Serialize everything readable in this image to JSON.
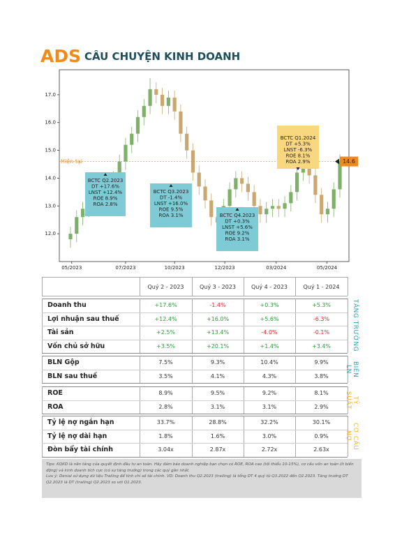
{
  "header": {
    "brand": "ADS",
    "title": "CÂU CHUYỆN KINH DOANH"
  },
  "chart_data": {
    "type": "candlestick",
    "xticks": [
      "05/2023",
      "07/2023",
      "10/2023",
      "12/2023",
      "03/2024",
      "05/2024"
    ],
    "open": [
      11.8,
      12.0,
      12.6,
      12.9,
      13.2,
      13.0,
      13.5,
      13.9,
      14.0,
      14.6,
      15.2,
      15.6,
      16.2,
      16.6,
      17.2,
      17.0,
      16.6,
      16.9,
      16.4,
      15.6,
      15.0,
      14.2,
      13.7,
      13.2,
      12.6,
      12.4,
      13.0,
      13.6,
      14.0,
      13.8,
      13.5,
      13.0,
      12.7,
      12.9,
      13.0,
      12.9,
      13.1,
      13.5,
      14.2,
      14.6,
      14.1,
      13.4,
      12.7,
      12.9,
      13.6
    ],
    "high": [
      12.25,
      12.85,
      13.15,
      13.45,
      13.45,
      13.75,
      14.15,
      14.25,
      14.85,
      15.45,
      15.85,
      16.45,
      16.85,
      17.6,
      17.45,
      17.25,
      17.15,
      17.15,
      16.65,
      15.85,
      15.25,
      14.45,
      13.95,
      13.45,
      12.85,
      13.25,
      13.85,
      14.25,
      14.25,
      14.05,
      13.75,
      13.25,
      13.15,
      13.25,
      13.25,
      13.35,
      13.75,
      14.45,
      14.85,
      14.85,
      14.35,
      13.65,
      13.15,
      13.85,
      14.85
    ],
    "low": [
      11.5,
      11.7,
      12.3,
      12.6,
      12.7,
      12.7,
      13.2,
      13.6,
      13.7,
      14.3,
      14.9,
      15.3,
      15.9,
      16.3,
      16.7,
      16.3,
      16.3,
      16.1,
      15.3,
      14.7,
      13.9,
      13.4,
      12.9,
      12.3,
      12.1,
      12.1,
      12.7,
      13.3,
      13.5,
      13.2,
      12.7,
      12.4,
      12.4,
      12.6,
      12.6,
      12.6,
      12.8,
      13.2,
      13.9,
      13.8,
      13.1,
      12.4,
      12.4,
      12.6,
      13.3
    ],
    "close": [
      12.0,
      12.6,
      12.9,
      13.2,
      13.0,
      13.5,
      13.9,
      14.0,
      14.6,
      15.2,
      15.6,
      16.2,
      16.6,
      17.2,
      17.0,
      16.6,
      16.9,
      16.4,
      15.6,
      15.0,
      14.2,
      13.7,
      13.2,
      12.6,
      12.4,
      13.0,
      13.6,
      14.0,
      13.8,
      13.5,
      13.0,
      12.7,
      12.9,
      13.0,
      12.9,
      13.1,
      13.5,
      14.2,
      14.6,
      14.1,
      13.4,
      12.7,
      12.9,
      13.6,
      14.6
    ],
    "up_color": "#7fb069",
    "down_color": "#c8a870",
    "ylim": [
      11.0,
      17.9
    ],
    "yticks": [
      {
        "value": 12,
        "label": "12.0"
      },
      {
        "value": 13,
        "label": "13.0"
      },
      {
        "value": 14,
        "label": "14.0"
      },
      {
        "value": 15,
        "label": "15.0"
      },
      {
        "value": 16,
        "label": "16.0"
      },
      {
        "value": 17,
        "label": "17.0"
      }
    ],
    "current": {
      "label": "Hiện tại",
      "value": 14.6,
      "color": "#f08a1c"
    },
    "annotations": [
      {
        "lines": [
          "BCTC Q2.2023",
          "DT +17.6%",
          "LNST +12.4%",
          "ROE 8.9%",
          "ROA 2.8%"
        ],
        "color": "#7ecbd6"
      },
      {
        "lines": [
          "BCTC Q3.2023",
          "DT -1.4%",
          "LNST +16.0%",
          "ROE 9.5%",
          "ROA 3.1%"
        ],
        "color": "#7ecbd6"
      },
      {
        "lines": [
          "BCTC Q4.2023",
          "DT +0.3%",
          "LNST +5.6%",
          "ROE 9.2%",
          "ROA 3.1%"
        ],
        "color": "#7ecbd6"
      },
      {
        "lines": [
          "BCTC Q1.2024",
          "DT +5.3%",
          "LNST -6.3%",
          "ROE 8.1%",
          "ROA 2.9%"
        ],
        "color": "#f9d77e"
      }
    ]
  },
  "table": {
    "header": [
      "Quý 2 - 2023",
      "Quý 3 - 2023",
      "Quý 4 - 2023",
      "Quý 1 - 2024"
    ],
    "groups": [
      {
        "side": "TĂNG TRƯỞNG",
        "side_color": "#2aa4b5",
        "rows": [
          {
            "label": "Doanh thu",
            "cells": [
              "+17.6%",
              "-1.4%",
              "+0.3%",
              "+5.3%"
            ]
          },
          {
            "label": "Lợi nhuận sau thuế",
            "cells": [
              "+12.4%",
              "+16.0%",
              "+5.6%",
              "-6.3%"
            ]
          },
          {
            "label": "Tài sản",
            "cells": [
              "+2.5%",
              "+13.4%",
              "-4.0%",
              "-0.1%"
            ]
          },
          {
            "label": "Vốn chủ sở hữu",
            "cells": [
              "+3.5%",
              "+20.1%",
              "+1.4%",
              "+3.4%"
            ]
          }
        ]
      },
      {
        "side": "BIÊN LN",
        "side_color": "#2aa4b5",
        "rows": [
          {
            "label": "BLN Gộp",
            "cells": [
              "7.5%",
              "9.3%",
              "10.4%",
              "9.9%"
            ]
          },
          {
            "label": "BLN sau thuế",
            "cells": [
              "3.5%",
              "4.1%",
              "4.3%",
              "3.8%"
            ]
          }
        ]
      },
      {
        "side": "TỶ SUẤT",
        "side_color": "#f2b632",
        "rows": [
          {
            "label": "ROE",
            "cells": [
              "8.9%",
              "9.5%",
              "9.2%",
              "8.1%"
            ]
          },
          {
            "label": "ROA",
            "cells": [
              "2.8%",
              "3.1%",
              "3.1%",
              "2.9%"
            ]
          }
        ]
      },
      {
        "side": "CƠ CẤU NỢ",
        "side_color": "#f2b632",
        "rows": [
          {
            "label": "Tỷ lệ nợ ngắn hạn",
            "cells": [
              "33.7%",
              "28.8%",
              "32.2%",
              "30.1%"
            ]
          },
          {
            "label": "Tỷ lệ nợ dài hạn",
            "cells": [
              "1.8%",
              "1.6%",
              "3.0%",
              "0.9%"
            ]
          },
          {
            "label": "Đòn bẩy tài chính",
            "cells": [
              "3.04x",
              "2.87x",
              "2.72x",
              "2.63x"
            ]
          }
        ]
      }
    ]
  },
  "footer": {
    "tips": "Tips: KQKD là nền tảng của quyết định đầu tư an toàn. Hãy đảm bảo doanh nghiệp bạn chọn có ROE, ROA cao (tối thiểu 10-15%), cơ cấu vốn an toàn (ít biến động) và kinh doanh tích cực (có sự tăng trưởng) trong các quý gần nhất.",
    "note": "Lưu ý: Denial sử dụng dữ liệu Trailing để tính chỉ số tài chính. VD: Doanh thu Q2.2023 (trailing) là tổng DT 4 quý từ Q3.2022 đến Q2.2023. Tăng trưởng DT Q2.2023 là DT (trailing) Q2.2023 so với Q1.2023."
  }
}
